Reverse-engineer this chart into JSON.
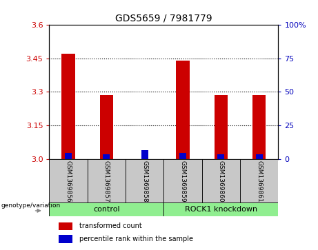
{
  "title": "GDS5659 / 7981779",
  "samples": [
    "GSM1369856",
    "GSM1369857",
    "GSM1369858",
    "GSM1369859",
    "GSM1369860",
    "GSM1369861"
  ],
  "red_values": [
    3.47,
    3.285,
    3.0,
    3.44,
    3.285,
    3.285
  ],
  "blue_values": [
    3.025,
    3.02,
    3.038,
    3.025,
    3.02,
    3.02
  ],
  "ymin": 3.0,
  "ymax": 3.6,
  "yticks_left": [
    3.0,
    3.15,
    3.3,
    3.45,
    3.6
  ],
  "yticks_right": [
    0,
    25,
    50,
    75,
    100
  ],
  "group1_label": "control",
  "group2_label": "ROCK1 knockdown",
  "group_prefix": "genotype/variation",
  "legend_red": "transformed count",
  "legend_blue": "percentile rank within the sample",
  "red_bar_width": 0.35,
  "blue_bar_width": 0.18,
  "red_color": "#cc0000",
  "blue_color": "#0000cc",
  "label_color_left": "#cc0000",
  "label_color_right": "#0000bb",
  "gray_box_color": "#c8c8c8",
  "green_box_color": "#90EE90",
  "plot_bg": "#ffffff"
}
